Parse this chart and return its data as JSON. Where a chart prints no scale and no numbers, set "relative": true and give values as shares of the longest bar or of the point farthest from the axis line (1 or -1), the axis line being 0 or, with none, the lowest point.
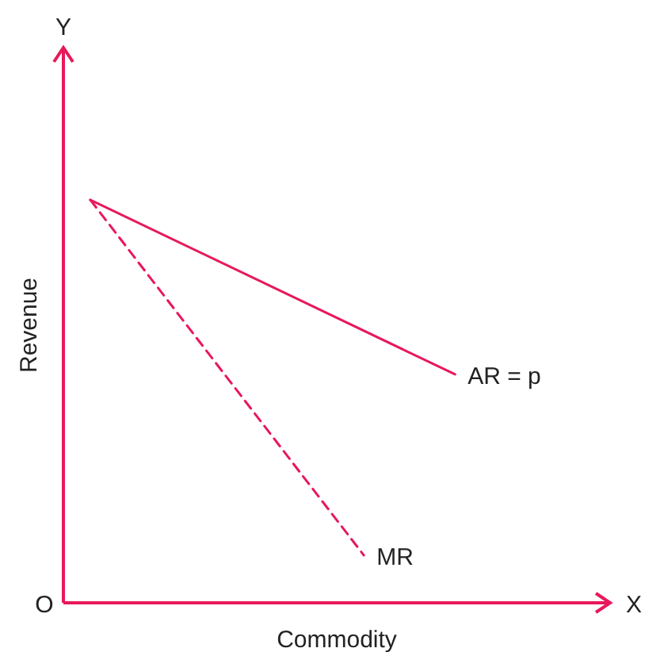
{
  "chart_data": {
    "type": "line",
    "relative": true,
    "xlabel": "Commodity",
    "ylabel": "Revenue",
    "annotations": [
      "Y",
      "X",
      "O"
    ],
    "categories": [
      null,
      null,
      null,
      null,
      null,
      null,
      null,
      null,
      null,
      null,
      null,
      null,
      null,
      null,
      null,
      null,
      null,
      null
    ],
    "series": [
      {
        "name": "AR = p",
        "color": "#e8185a",
        "values": [
          1,
          null,
          null,
          null,
          null,
          null,
          null,
          null,
          null,
          null,
          null,
          null,
          0.567,
          null,
          null,
          null,
          null,
          null
        ],
        "line_style": "solid"
      },
      {
        "name": "MR",
        "color": "#e8185a",
        "values": [
          1,
          null,
          null,
          null,
          null,
          null,
          null,
          null,
          null,
          0.118,
          null,
          null,
          null,
          null,
          null,
          null,
          null,
          null
        ],
        "line_style": "dashed"
      }
    ]
  }
}
